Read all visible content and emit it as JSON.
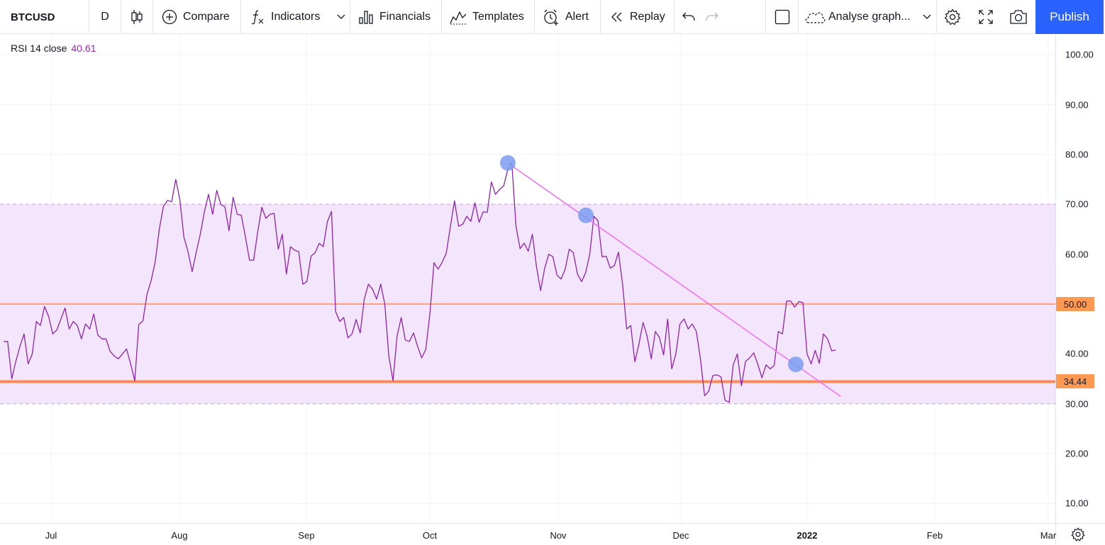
{
  "toolbar": {
    "symbol": "BTCUSD",
    "interval": "D",
    "compare": "Compare",
    "indicators": "Indicators",
    "financials": "Financials",
    "templates": "Templates",
    "alert": "Alert",
    "replay": "Replay",
    "analyse": "Analyse graph...",
    "publish": "Publish"
  },
  "indicator_legend": {
    "name": "RSI 14 close",
    "value": "40.61"
  },
  "price_axis": {
    "labels": [
      "100.00",
      "90.00",
      "80.00",
      "70.00",
      "60.00",
      "50.00",
      "40.00",
      "30.00",
      "20.00",
      "10.00"
    ],
    "badges": [
      {
        "value": "50.00",
        "color": "#ff9850"
      },
      {
        "value": "34.44",
        "color": "#ff9850"
      }
    ]
  },
  "time_axis": {
    "labels": [
      "Jul",
      "Aug",
      "Sep",
      "Oct",
      "Nov",
      "Dec",
      "2022",
      "Feb",
      "Mar"
    ]
  },
  "colors": {
    "rsi_line": "#8e24aa",
    "band_fill": "#f3e5fc",
    "band_border": "#c8a2d8",
    "hline": "#ff8a50",
    "trendline": "#f06ef0",
    "markers": "#7b9cf0"
  },
  "chart_data": {
    "type": "line",
    "title": "RSI 14 close",
    "ylim": [
      5,
      105
    ],
    "series": [
      {
        "name": "RSI 14 close",
        "values": [
          42.5,
          42.5,
          35,
          38.5,
          41.5,
          44,
          38,
          40,
          46.5,
          45.7,
          49.5,
          47.5,
          44,
          44.8,
          47,
          49.2,
          45,
          46.5,
          45.7,
          43,
          46,
          45,
          48,
          43.8,
          43,
          43,
          40.5,
          39.6,
          39,
          40,
          41,
          38,
          34.6,
          45.9,
          46.6,
          52,
          54.7,
          58.5,
          65,
          69.6,
          70.8,
          70.5,
          75,
          71,
          63.4,
          60.5,
          56.5,
          60.4,
          64,
          68.5,
          72,
          68,
          72.8,
          70,
          69.5,
          64.7,
          71.4,
          68,
          67.8,
          63.5,
          58.8,
          58.8,
          64.5,
          69.4,
          67.2,
          68,
          68.2,
          61,
          64,
          56,
          61.5,
          60.8,
          60.5,
          54,
          54.5,
          59.6,
          60.3,
          62.2,
          61.5,
          66.5,
          68.6,
          48.5,
          46.5,
          47.3,
          43.2,
          44,
          46.9,
          44.2,
          51,
          54,
          53,
          51,
          54,
          50,
          39.5,
          34.6,
          43.6,
          47.3,
          42.8,
          42.5,
          44.2,
          41.5,
          39.2,
          40.9,
          48,
          58.3,
          57,
          58.4,
          60.2,
          65.5,
          70.7,
          65.6,
          66,
          67.6,
          66.6,
          70.3,
          66.4,
          68.5,
          68.4,
          74.5,
          72,
          73,
          73.7,
          77,
          78.3,
          65.6,
          61.1,
          62.2,
          60.6,
          64,
          57.5,
          52.7,
          57.2,
          60,
          59.5,
          55.8,
          55,
          57,
          61,
          60.3,
          56,
          54.5,
          56.3,
          60,
          67.6,
          66.7,
          59.5,
          59.6,
          57.2,
          57.7,
          60.4,
          54,
          45,
          45.7,
          38.4,
          42,
          46.3,
          43.5,
          39,
          44.5,
          43.3,
          39.8,
          47,
          37,
          40,
          46,
          47,
          45,
          46,
          44.5,
          39,
          31.6,
          32.5,
          35.6,
          35.8,
          35.4,
          30.7,
          30.3,
          37.8,
          40,
          33.6,
          38.5,
          39.2,
          40.2,
          37.9,
          35.2,
          37.8,
          37,
          37.7,
          44.5,
          44,
          50.6,
          50.6,
          49.4,
          50.5,
          50.3,
          40,
          38,
          40.7,
          38.1,
          44,
          43,
          40.6,
          40.8
        ]
      }
    ],
    "x_labels": [
      "Jul",
      "Aug",
      "Sep",
      "Oct",
      "Nov",
      "Dec",
      "2022",
      "Feb",
      "Mar"
    ],
    "bands": {
      "upper": 70,
      "lower": 30
    },
    "hlines": [
      50,
      34.44
    ],
    "trendline": {
      "from": 78.3,
      "to": 31.5
    },
    "markers": [
      78.3,
      67.8,
      37.9
    ],
    "grid": true
  }
}
